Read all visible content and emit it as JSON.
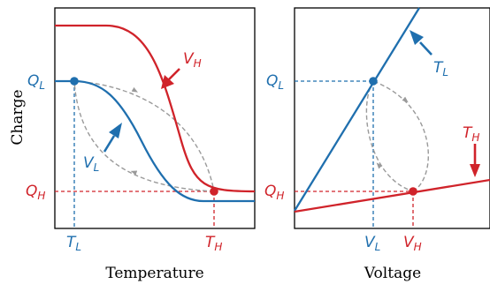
{
  "colors": {
    "blue": "#1f6fae",
    "red": "#d0232a",
    "gray": "#9a9a9a",
    "axis": "#000000"
  },
  "y_axis_label": "Charge",
  "left_panel": {
    "x_axis_label": "Temperature",
    "tick_TL": {
      "main": "T",
      "sub": "L"
    },
    "tick_TH": {
      "main": "T",
      "sub": "H"
    },
    "tick_QL": {
      "main": "Q",
      "sub": "L"
    },
    "tick_QH": {
      "main": "Q",
      "sub": "H"
    },
    "label_VH": {
      "main": "V",
      "sub": "H"
    },
    "label_VL": {
      "main": "V",
      "sub": "L"
    }
  },
  "right_panel": {
    "x_axis_label": "Voltage",
    "tick_VL": {
      "main": "V",
      "sub": "L"
    },
    "tick_VH": {
      "main": "V",
      "sub": "H"
    },
    "tick_QL": {
      "main": "Q",
      "sub": "L"
    },
    "tick_QH": {
      "main": "Q",
      "sub": "H"
    },
    "label_TL": {
      "main": "T",
      "sub": "L"
    },
    "label_TH": {
      "main": "T",
      "sub": "H"
    }
  }
}
